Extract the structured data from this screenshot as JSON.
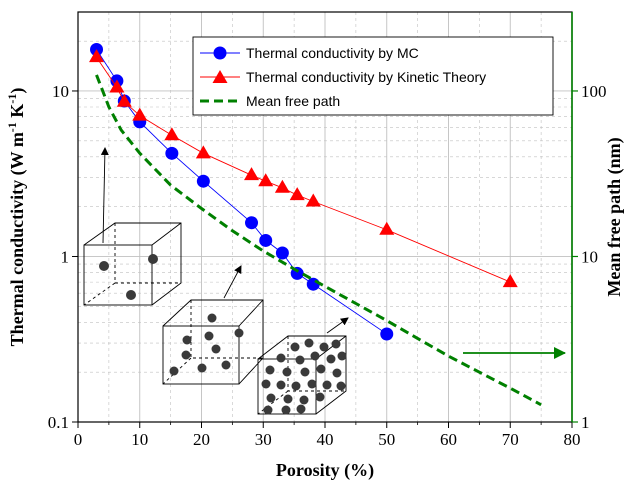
{
  "colors": {
    "mc": "#0000ff",
    "kinetic": "#ff0000",
    "mfp": "#008000",
    "grid": "#c0c0c0",
    "right_axis": "#008000",
    "cube": "#000000"
  },
  "chart_data": {
    "type": "line",
    "xlabel": "Porosity (%)",
    "ylabel_left": "Thermal conductivity  (W m",
    "ylabel_left_sup1": "-1",
    "ylabel_left_mid": " K",
    "ylabel_left_sup2": "-1",
    "ylabel_left_end": ")",
    "ylabel_right": "Mean free path (nm)",
    "xlim": [
      0,
      80
    ],
    "ylim_left": [
      0.1,
      30
    ],
    "ylim_right": [
      1,
      300
    ],
    "y_scale": "log",
    "grid": true,
    "legend_position": "top-right",
    "x_ticks": [
      "0",
      "10",
      "20",
      "30",
      "40",
      "50",
      "60",
      "70",
      "80"
    ],
    "x_tick_values": [
      0,
      10,
      20,
      30,
      40,
      50,
      60,
      70,
      80
    ],
    "y_left_ticks": [
      "0.1",
      "1",
      "10"
    ],
    "y_left_tick_values": [
      0.1,
      1,
      10
    ],
    "y_right_ticks": [
      "1",
      "10",
      "100"
    ],
    "y_right_tick_values": [
      1,
      10,
      100
    ],
    "series": [
      {
        "name": "Thermal conductivity by MC",
        "axis": "left",
        "marker": "circle",
        "x": [
          3,
          6.3,
          7.5,
          10,
          15.2,
          20.3,
          28.1,
          30.4,
          33.1,
          35.5,
          38.1,
          50
        ],
        "y": [
          17.8,
          11.5,
          8.7,
          6.5,
          4.2,
          2.85,
          1.6,
          1.25,
          1.05,
          0.79,
          0.68,
          0.34
        ]
      },
      {
        "name": "Thermal conductivity by Kinetic Theory",
        "axis": "left",
        "marker": "triangle",
        "x": [
          3,
          6.3,
          7.5,
          10,
          15.2,
          20.3,
          28.1,
          30.4,
          33.1,
          35.5,
          38.1,
          50,
          70
        ],
        "y": [
          16,
          10.5,
          8.6,
          7.1,
          5.4,
          4.2,
          3.1,
          2.85,
          2.6,
          2.35,
          2.15,
          1.45,
          0.7
        ]
      },
      {
        "name": "Mean free path",
        "axis": "right",
        "marker": "none",
        "x": [
          3,
          5,
          7,
          10,
          15,
          20,
          25,
          30,
          35,
          40,
          45,
          50,
          55,
          60,
          65,
          70,
          75
        ],
        "y": [
          125,
          80,
          58,
          42,
          27,
          19.5,
          14.3,
          10.8,
          8.4,
          6.6,
          5.2,
          4.1,
          3.2,
          2.5,
          2.0,
          1.6,
          1.27
        ]
      }
    ],
    "annotations": [
      {
        "type": "arrow",
        "direction": "right",
        "meaning": "points to right axis for mean free path"
      }
    ]
  }
}
